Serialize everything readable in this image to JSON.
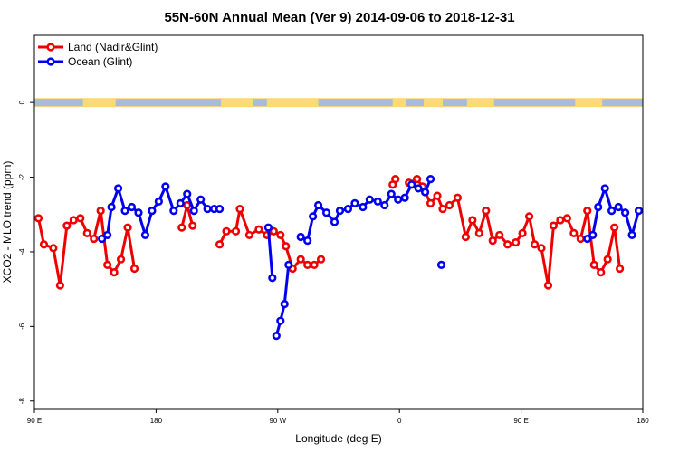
{
  "chart_data": {
    "type": "line",
    "title": "55N-60N Annual Mean (Ver 9)   2014-09-06 to 2018-12-31",
    "xlabel": "Longitude (deg E)",
    "ylabel": "XCO2 - MLO trend (ppm)",
    "x_axis_unit": "degrees east, unwrapped (90 = 90 E, 180 = 180, 270 = 90 W, 360 = 0, 450 = 90 E, 540 = 180)",
    "xlim": [
      90,
      540
    ],
    "ylim": [
      -8.2,
      1.8
    ],
    "x_ticks": [
      {
        "value": 90,
        "label": "90 E"
      },
      {
        "value": 180,
        "label": "180"
      },
      {
        "value": 270,
        "label": "90 W"
      },
      {
        "value": 360,
        "label": "0"
      },
      {
        "value": 450,
        "label": "90 E"
      },
      {
        "value": 540,
        "label": "180"
      }
    ],
    "y_ticks": [
      {
        "value": 0,
        "label": "0"
      },
      {
        "value": -2,
        "label": "-2"
      },
      {
        "value": -4,
        "label": "-4"
      },
      {
        "value": -6,
        "label": "-6"
      },
      {
        "value": -8,
        "label": "-8"
      }
    ],
    "grid": false,
    "legend_position": "top-left",
    "land_ocean_band": {
      "y_center": 0,
      "land_color": "#ffd978",
      "ocean_color": "#a7bcd8"
    },
    "series": [
      {
        "name": "Land (Nadir&Glint)",
        "color": "#ee0000",
        "segments": [
          [
            [
              93,
              -3.1
            ],
            [
              97,
              -3.8
            ],
            [
              104,
              -3.9
            ],
            [
              109,
              -4.9
            ],
            [
              114,
              -3.3
            ],
            [
              119,
              -3.15
            ],
            [
              124,
              -3.1
            ],
            [
              129,
              -3.5
            ],
            [
              134,
              -3.65
            ],
            [
              139,
              -2.9
            ],
            [
              144,
              -4.35
            ],
            [
              149,
              -4.55
            ],
            [
              154,
              -4.2
            ],
            [
              159,
              -3.35
            ],
            [
              164,
              -4.45
            ]
          ],
          [
            [
              199,
              -3.35
            ],
            [
              203,
              -2.75
            ],
            [
              207,
              -3.3
            ]
          ],
          [
            [
              227,
              -3.8
            ],
            [
              232,
              -3.45
            ],
            [
              239,
              -3.45
            ],
            [
              242,
              -2.85
            ],
            [
              249,
              -3.55
            ],
            [
              256,
              -3.4
            ],
            [
              262,
              -3.55
            ],
            [
              267,
              -3.45
            ],
            [
              272,
              -3.55
            ],
            [
              276,
              -3.85
            ],
            [
              281,
              -4.45
            ],
            [
              287,
              -4.2
            ],
            [
              292,
              -4.35
            ],
            [
              297,
              -4.35
            ],
            [
              302,
              -4.2
            ]
          ],
          [
            [
              355,
              -2.2
            ],
            [
              357,
              -2.05
            ]
          ],
          [
            [
              367,
              -2.15
            ],
            [
              373,
              -2.05
            ],
            [
              377,
              -2.25
            ],
            [
              383,
              -2.7
            ],
            [
              388,
              -2.5
            ],
            [
              392,
              -2.85
            ],
            [
              397,
              -2.75
            ],
            [
              403,
              -2.55
            ],
            [
              409,
              -3.6
            ],
            [
              414,
              -3.15
            ],
            [
              419,
              -3.5
            ],
            [
              424,
              -2.9
            ],
            [
              429,
              -3.7
            ],
            [
              434,
              -3.55
            ],
            [
              440,
              -3.8
            ],
            [
              446,
              -3.75
            ],
            [
              451,
              -3.5
            ],
            [
              456,
              -3.05
            ],
            [
              460,
              -3.8
            ],
            [
              465,
              -3.9
            ],
            [
              470,
              -4.9
            ],
            [
              474,
              -3.3
            ],
            [
              479,
              -3.15
            ],
            [
              484,
              -3.1
            ],
            [
              489,
              -3.5
            ],
            [
              494,
              -3.65
            ],
            [
              499,
              -2.9
            ],
            [
              504,
              -4.35
            ],
            [
              509,
              -4.55
            ],
            [
              514,
              -4.2
            ],
            [
              519,
              -3.35
            ],
            [
              523,
              -4.45
            ]
          ]
        ]
      },
      {
        "name": "Ocean (Glint)",
        "color": "#0000ee",
        "segments": [
          [
            [
              140,
              -3.65
            ],
            [
              144,
              -3.55
            ],
            [
              147,
              -2.8
            ],
            [
              152,
              -2.3
            ],
            [
              157,
              -2.9
            ],
            [
              162,
              -2.8
            ],
            [
              167,
              -2.95
            ],
            [
              172,
              -3.55
            ],
            [
              177,
              -2.9
            ],
            [
              182,
              -2.65
            ],
            [
              187,
              -2.25
            ],
            [
              193,
              -2.9
            ],
            [
              198,
              -2.7
            ],
            [
              203,
              -2.45
            ],
            [
              208,
              -2.9
            ],
            [
              213,
              -2.6
            ],
            [
              218,
              -2.85
            ],
            [
              223,
              -2.85
            ],
            [
              227,
              -2.85
            ]
          ],
          [
            [
              263,
              -3.35
            ],
            [
              266,
              -4.7
            ]
          ],
          [
            [
              269,
              -6.25
            ],
            [
              272,
              -5.85
            ],
            [
              275,
              -5.4
            ],
            [
              278,
              -4.35
            ]
          ],
          [
            [
              287,
              -3.6
            ],
            [
              292,
              -3.7
            ],
            [
              296,
              -3.05
            ],
            [
              300,
              -2.75
            ],
            [
              306,
              -2.95
            ],
            [
              312,
              -3.2
            ],
            [
              316,
              -2.9
            ],
            [
              322,
              -2.85
            ],
            [
              327,
              -2.7
            ],
            [
              333,
              -2.8
            ],
            [
              338,
              -2.6
            ],
            [
              344,
              -2.65
            ],
            [
              349,
              -2.75
            ],
            [
              354,
              -2.45
            ],
            [
              359,
              -2.6
            ],
            [
              364,
              -2.55
            ],
            [
              369,
              -2.2
            ],
            [
              374,
              -2.3
            ],
            [
              379,
              -2.4
            ],
            [
              383,
              -2.05
            ]
          ],
          [
            [
              391,
              -4.35
            ]
          ],
          [
            [
              499,
              -3.65
            ],
            [
              503,
              -3.55
            ],
            [
              507,
              -2.8
            ],
            [
              512,
              -2.3
            ],
            [
              517,
              -2.9
            ],
            [
              522,
              -2.8
            ],
            [
              527,
              -2.95
            ],
            [
              532,
              -3.55
            ],
            [
              537,
              -2.9
            ]
          ]
        ]
      }
    ]
  }
}
